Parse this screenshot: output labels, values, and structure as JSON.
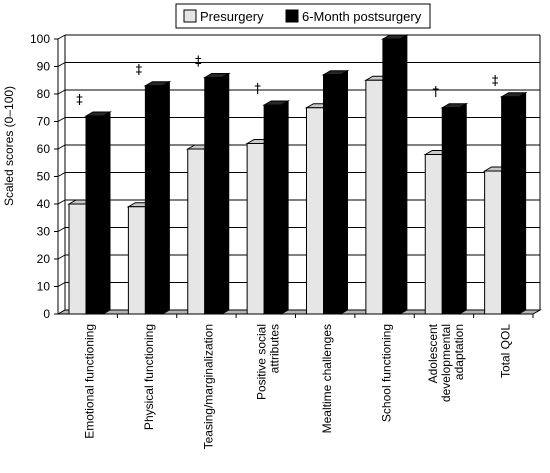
{
  "chart_data": {
    "type": "bar",
    "title": "",
    "ylabel": "Scaled scores (0–100)",
    "xlabel": "",
    "ylim": [
      0,
      100
    ],
    "yticks": [
      0,
      10,
      20,
      30,
      40,
      50,
      60,
      70,
      80,
      90,
      100
    ],
    "grid": true,
    "legend_position": "top",
    "categories": [
      [
        "Emotional functioning"
      ],
      [
        "Physical functioning"
      ],
      [
        "Teasing/marginalization"
      ],
      [
        "Positive social",
        "attributes"
      ],
      [
        "Mealtime challenges"
      ],
      [
        "School functioning"
      ],
      [
        "Adolescent",
        "developmental",
        "adaptation"
      ],
      [
        "Total QOL"
      ]
    ],
    "series": [
      {
        "name": "Presurgery",
        "color": "#e6e6e6",
        "values": [
          40,
          39,
          60,
          62,
          75,
          85,
          58,
          52
        ]
      },
      {
        "name": "6-Month postsurgery",
        "color": "#000000",
        "values": [
          72,
          83,
          86,
          76,
          87,
          100,
          75,
          79
        ]
      }
    ],
    "annotations": [
      "‡",
      "‡",
      "‡",
      "†",
      "",
      "",
      "†",
      "‡"
    ]
  }
}
